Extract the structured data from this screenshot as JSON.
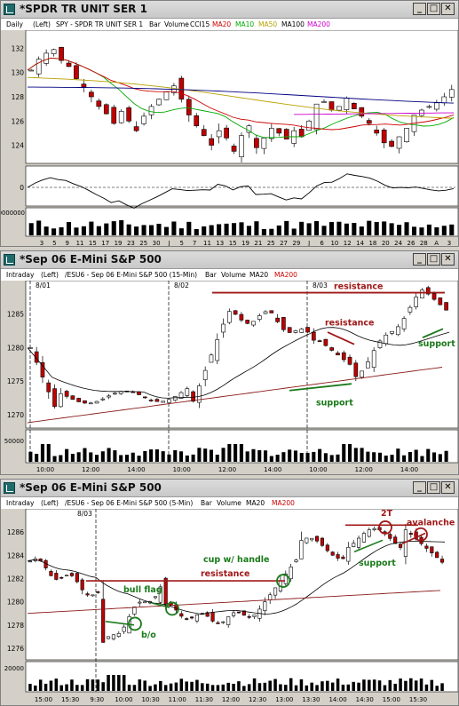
{
  "windows": [
    {
      "title": "*SPDR TR UNIT SER 1",
      "info": {
        "period": "Daily",
        "axis": "(Left)",
        "symbol": "SPY - SPDR TR UNIT SER 1",
        "bar": "Bar",
        "volume": "Volume",
        "studies": [
          {
            "label": "CCI15",
            "color": "#000000"
          },
          {
            "label": "MA20",
            "color": "#cc0000"
          },
          {
            "label": "MA10",
            "color": "#00aa00"
          },
          {
            "label": "MA50",
            "color": "#b8a000"
          },
          {
            "label": "MA100",
            "color": "#000080"
          },
          {
            "label": "MA200",
            "color": "#cc00cc"
          }
        ]
      },
      "price_ticks": [
        "132",
        "130",
        "128",
        "126",
        "124"
      ],
      "cci_tick": "0",
      "volume_tick": "200000000",
      "x_ticks": [
        "3",
        "5",
        "9",
        "11",
        "15",
        "17",
        "19",
        "23",
        "25",
        "30",
        "J",
        "5",
        "7",
        "11",
        "13",
        "15",
        "19",
        "21",
        "25",
        "27",
        "29",
        "J",
        "6",
        "10",
        "12",
        "14",
        "18",
        "20",
        "24",
        "26",
        "28",
        "A",
        "3"
      ]
    },
    {
      "title": "*Sep 06  E-Mini S&P 500",
      "info": {
        "period": "Intraday",
        "axis": "(Left)",
        "symbol": "/ESU6 - Sep 06 E-Mini S&P 500 (15-Min)",
        "bar": "Bar",
        "volume": "Volume",
        "studies": [
          {
            "label": "MA20",
            "color": "#000000"
          },
          {
            "label": "MA200",
            "color": "#cc0000"
          }
        ]
      },
      "dates": [
        "8/01",
        "8/02",
        "8/03"
      ],
      "price_ticks": [
        "1285",
        "1280",
        "1275",
        "1270"
      ],
      "volume_tick": "50000",
      "x_ticks": [
        "10:00",
        "12:00",
        "14:00",
        "10:00",
        "12:00",
        "14:00",
        "10:00",
        "12:00",
        "14:00"
      ],
      "annotations": {
        "resistance_top": "resistance",
        "resistance_mid": "resistance",
        "support_right": "support",
        "support_bottom": "support"
      }
    },
    {
      "title": "*Sep 06  E-Mini S&P 500",
      "info": {
        "period": "Intraday",
        "axis": "(Left)",
        "symbol": "/ESU6 - Sep 06 E-Mini S&P 500 (5-Min)",
        "bar": "Bar",
        "volume": "Volume",
        "studies": [
          {
            "label": "MA20",
            "color": "#000000"
          },
          {
            "label": "MA200",
            "color": "#cc0000"
          }
        ]
      },
      "dates": [
        "8/03"
      ],
      "price_ticks": [
        "1286",
        "1284",
        "1282",
        "1280",
        "1278",
        "1276"
      ],
      "volume_tick": "20000",
      "x_ticks": [
        "15:00",
        "15:30",
        "9:30",
        "10:00",
        "10:30",
        "11:00",
        "11:30",
        "12:00",
        "12:30",
        "13:00",
        "13:30",
        "14:00",
        "14:30",
        "15:00",
        "15:30"
      ],
      "annotations": {
        "two_t": "2T",
        "avalanche": "avalanche",
        "cup": "cup w/ handle",
        "resistance": "resistance",
        "support": "support",
        "bull_flag": "bull flag",
        "breakout": "b/o"
      }
    }
  ],
  "colors": {
    "up_candle": "#ffffff",
    "down_candle": "#c00000",
    "annotation_red": "#a01818",
    "annotation_green": "#1a7a1a",
    "volume_bar": "#000000"
  }
}
